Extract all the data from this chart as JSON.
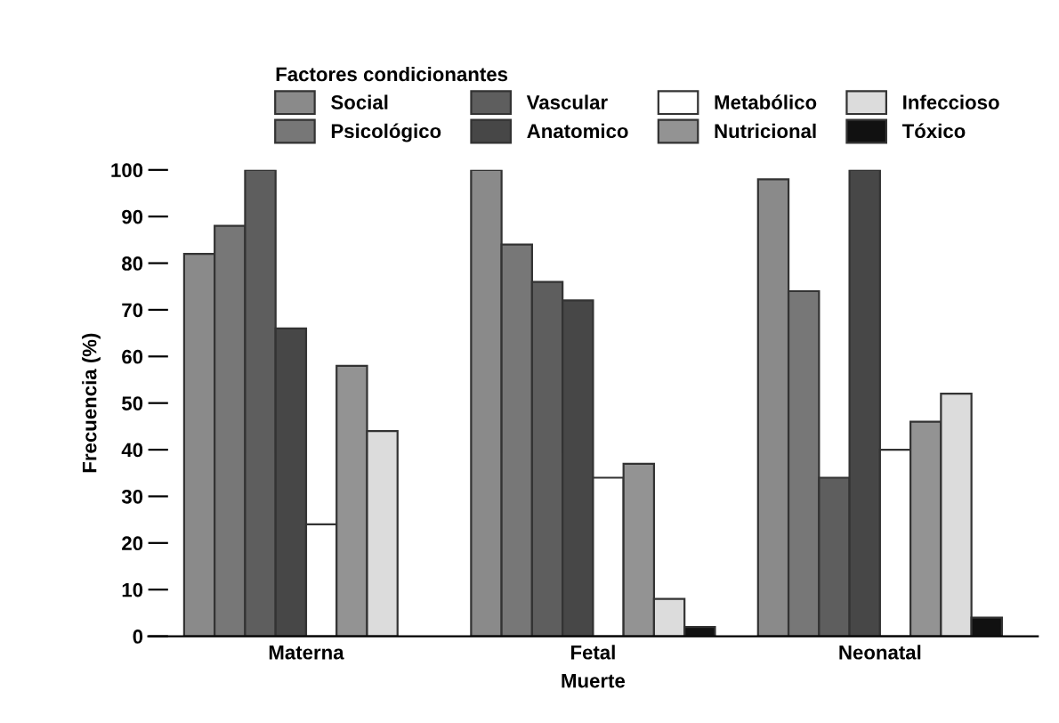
{
  "chart_data": {
    "type": "bar",
    "xlabel": "Muerte",
    "ylabel": "Frecuencia (%)",
    "legend_title": "Factores condicionantes",
    "legend": "top",
    "categories": [
      "Materna",
      "Fetal",
      "Neonatal"
    ],
    "series": [
      {
        "name": "Social",
        "color": "#8a8a8a",
        "values": [
          82,
          100,
          98
        ]
      },
      {
        "name": "Psicológico",
        "color": "#777777",
        "values": [
          88,
          84,
          74
        ]
      },
      {
        "name": "Vascular",
        "color": "#5e5e5e",
        "values": [
          100,
          76,
          34
        ]
      },
      {
        "name": "Anatomico",
        "color": "#474747",
        "values": [
          66,
          72,
          100
        ]
      },
      {
        "name": "Metabólico",
        "color": "#ffffff",
        "values": [
          24,
          34,
          40
        ]
      },
      {
        "name": "Nutricional",
        "color": "#939393",
        "values": [
          58,
          37,
          46
        ]
      },
      {
        "name": "Infeccioso",
        "color": "#dcdcdc",
        "values": [
          44,
          8,
          52
        ]
      },
      {
        "name": "Tóxico",
        "color": "#111111",
        "values": [
          null,
          2,
          4
        ]
      }
    ],
    "ylim": [
      0,
      100
    ],
    "yticks": [
      0,
      10,
      20,
      30,
      40,
      50,
      60,
      70,
      80,
      90,
      100
    ],
    "grid": false
  }
}
